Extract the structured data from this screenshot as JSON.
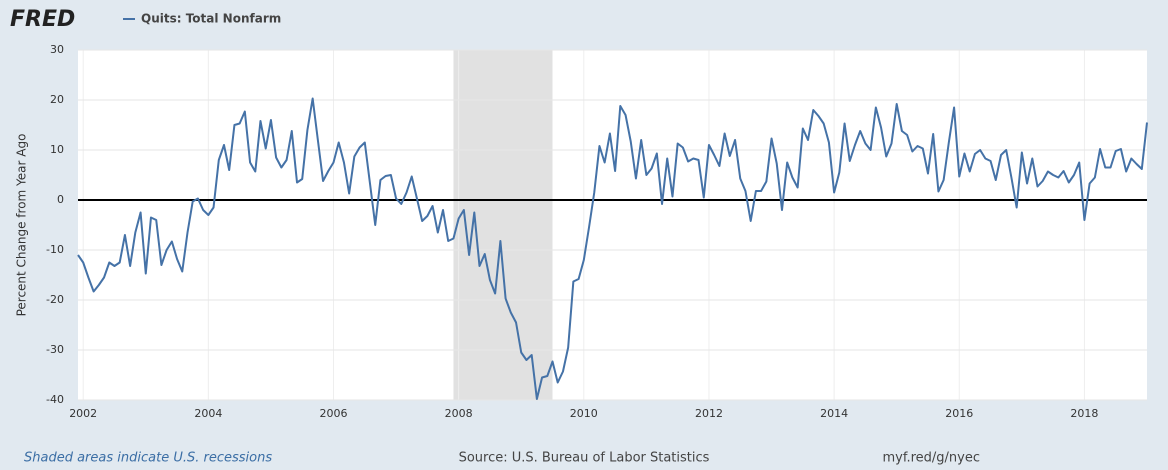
{
  "brand": "FRED",
  "footer": {
    "note": "Shaded areas indicate U.S. recessions",
    "source": "Source: U.S. Bureau of Labor Statistics",
    "link": "myf.red/g/nyec"
  },
  "chart_data": {
    "type": "line",
    "ylabel": "Percent Change from Year Ago",
    "xlim": [
      2001.917,
      2019.0
    ],
    "xticks": [
      2002,
      2004,
      2006,
      2008,
      2010,
      2012,
      2014,
      2016,
      2018
    ],
    "ylim": [
      -40,
      30
    ],
    "yticks": [
      -40,
      -30,
      -20,
      -10,
      0,
      10,
      20,
      30
    ],
    "grid": true,
    "recessions": [
      {
        "start": 2007.917,
        "end": 2009.5
      }
    ],
    "x": [
      2001.917,
      2002.0,
      2002.083,
      2002.167,
      2002.25,
      2002.333,
      2002.417,
      2002.5,
      2002.583,
      2002.667,
      2002.75,
      2002.833,
      2002.917,
      2003.0,
      2003.083,
      2003.167,
      2003.25,
      2003.333,
      2003.417,
      2003.5,
      2003.583,
      2003.667,
      2003.75,
      2003.833,
      2003.917,
      2004.0,
      2004.083,
      2004.167,
      2004.25,
      2004.333,
      2004.417,
      2004.5,
      2004.583,
      2004.667,
      2004.75,
      2004.833,
      2004.917,
      2005.0,
      2005.083,
      2005.167,
      2005.25,
      2005.333,
      2005.417,
      2005.5,
      2005.583,
      2005.667,
      2005.75,
      2005.833,
      2005.917,
      2006.0,
      2006.083,
      2006.167,
      2006.25,
      2006.333,
      2006.417,
      2006.5,
      2006.583,
      2006.667,
      2006.75,
      2006.833,
      2006.917,
      2007.0,
      2007.083,
      2007.167,
      2007.25,
      2007.333,
      2007.417,
      2007.5,
      2007.583,
      2007.667,
      2007.75,
      2007.833,
      2007.917,
      2008.0,
      2008.083,
      2008.167,
      2008.25,
      2008.333,
      2008.417,
      2008.5,
      2008.583,
      2008.667,
      2008.75,
      2008.833,
      2008.917,
      2009.0,
      2009.083,
      2009.167,
      2009.25,
      2009.333,
      2009.417,
      2009.5,
      2009.583,
      2009.667,
      2009.75,
      2009.833,
      2009.917,
      2010.0,
      2010.083,
      2010.167,
      2010.25,
      2010.333,
      2010.417,
      2010.5,
      2010.583,
      2010.667,
      2010.75,
      2010.833,
      2010.917,
      2011.0,
      2011.083,
      2011.167,
      2011.25,
      2011.333,
      2011.417,
      2011.5,
      2011.583,
      2011.667,
      2011.75,
      2011.833,
      2011.917,
      2012.0,
      2012.083,
      2012.167,
      2012.25,
      2012.333,
      2012.417,
      2012.5,
      2012.583,
      2012.667,
      2012.75,
      2012.833,
      2012.917,
      2013.0,
      2013.083,
      2013.167,
      2013.25,
      2013.333,
      2013.417,
      2013.5,
      2013.583,
      2013.667,
      2013.75,
      2013.833,
      2013.917,
      2014.0,
      2014.083,
      2014.167,
      2014.25,
      2014.333,
      2014.417,
      2014.5,
      2014.583,
      2014.667,
      2014.75,
      2014.833,
      2014.917,
      2015.0,
      2015.083,
      2015.167,
      2015.25,
      2015.333,
      2015.417,
      2015.5,
      2015.583,
      2015.667,
      2015.75,
      2015.833,
      2015.917,
      2016.0,
      2016.083,
      2016.167,
      2016.25,
      2016.333,
      2016.417,
      2016.5,
      2016.583,
      2016.667,
      2016.75,
      2016.833,
      2016.917,
      2017.0,
      2017.083,
      2017.167,
      2017.25,
      2017.333,
      2017.417,
      2017.5,
      2017.583,
      2017.667,
      2017.75,
      2017.833,
      2017.917,
      2018.0,
      2018.083,
      2018.167,
      2018.25,
      2018.333,
      2018.417,
      2018.5,
      2018.583,
      2018.667,
      2018.75,
      2018.833,
      2018.917,
      2019.0
    ],
    "series": [
      {
        "name": "Quits: Total Nonfarm",
        "color": "#4572a7",
        "values": [
          -11,
          -12.5,
          -15.5,
          -18.3,
          -17,
          -15.5,
          -12.5,
          -13.2,
          -12.5,
          -7,
          -13.2,
          -6.5,
          -2.5,
          -14.7,
          -3.5,
          -4,
          -13,
          -10,
          -8.3,
          -11.8,
          -14.3,
          -6.5,
          -0.3,
          0.3,
          -2,
          -3,
          -1.5,
          8,
          11,
          6,
          15,
          15.3,
          17.7,
          7.5,
          5.7,
          15.8,
          10.3,
          16,
          8.5,
          6.5,
          8,
          13.8,
          3.5,
          4.2,
          14,
          20.3,
          12,
          3.8,
          5.8,
          7.5,
          11.5,
          7.5,
          1.3,
          8.7,
          10.5,
          11.5,
          3.3,
          -5,
          4,
          4.8,
          5,
          0.3,
          -0.8,
          1.5,
          4.7,
          0.3,
          -4.2,
          -3.2,
          -1.2,
          -6.5,
          -2,
          -8.2,
          -7.7,
          -3.7,
          -2,
          -11,
          -2.5,
          -13.2,
          -10.8,
          -16,
          -18.7,
          -8.2,
          -19.7,
          -22.5,
          -24.5,
          -30.5,
          -32,
          -31,
          -39.8,
          -35.5,
          -35.2,
          -32.3,
          -36.5,
          -34.3,
          -29.5,
          -16.3,
          -15.8,
          -12,
          -5.5,
          1.5,
          10.8,
          7.5,
          13.3,
          5.8,
          18.8,
          17,
          11.7,
          4.3,
          12,
          5,
          6.3,
          9.3,
          -0.8,
          8.3,
          0.7,
          11.3,
          10.5,
          7.7,
          8.3,
          8,
          0.5,
          11,
          9,
          6.8,
          13.3,
          8.8,
          12,
          4.3,
          1.8,
          -4.2,
          1.8,
          1.8,
          3.7,
          12.3,
          7.3,
          -2,
          7.5,
          4.5,
          2.5,
          14.3,
          12,
          18,
          16.8,
          15.3,
          11.5,
          1.5,
          5.5,
          15.3,
          7.8,
          11,
          13.8,
          11.3,
          10,
          18.5,
          14.5,
          8.7,
          11.3,
          19.2,
          13.8,
          13,
          9.7,
          10.8,
          10.3,
          5.3,
          13.2,
          1.7,
          4,
          11.5,
          18.5,
          4.7,
          9.3,
          5.7,
          9.2,
          10,
          8.3,
          7.8,
          4,
          9,
          10,
          4.5,
          -1.5,
          9.5,
          3.3,
          8.3,
          2.7,
          3.8,
          5.7,
          5,
          4.5,
          5.8,
          3.5,
          5,
          7.5,
          -4,
          3.3,
          4.5,
          10.2,
          6.5,
          6.5,
          9.8,
          10.2,
          5.7,
          8.3,
          7.2,
          6.2,
          15.5
        ]
      }
    ]
  }
}
